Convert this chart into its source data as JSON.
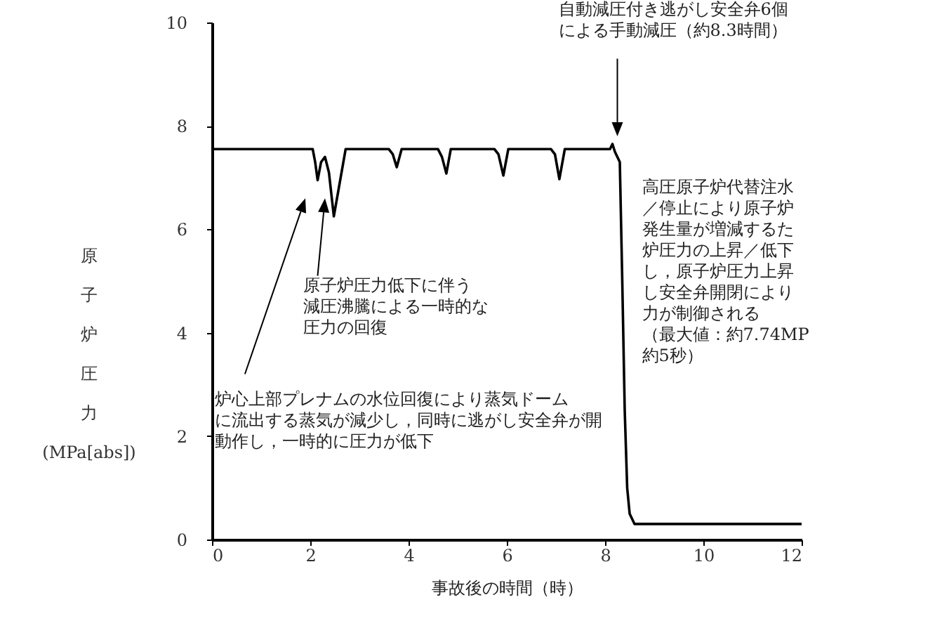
{
  "chart_data": {
    "type": "line",
    "xlabel": "事故後の時間（時）",
    "ylabel": "原子炉圧力\n(MPa[abs])",
    "x": [
      0,
      2.05,
      2.1,
      2.15,
      2.22,
      2.3,
      2.38,
      2.48,
      2.6,
      2.72,
      3.6,
      3.68,
      3.76,
      3.86,
      4.6,
      4.68,
      4.77,
      4.86,
      5.75,
      5.83,
      5.93,
      6.03,
      6.9,
      6.98,
      7.07,
      7.18,
      8.1,
      8.15,
      8.2,
      8.3,
      8.35,
      8.4,
      8.45,
      8.5,
      8.6,
      12
    ],
    "series": [
      {
        "color": "#000000",
        "values": [
          7.55,
          7.55,
          7.3,
          6.95,
          7.3,
          7.4,
          7.1,
          6.25,
          6.9,
          7.55,
          7.55,
          7.45,
          7.2,
          7.55,
          7.55,
          7.4,
          7.08,
          7.55,
          7.55,
          7.45,
          7.04,
          7.55,
          7.55,
          7.45,
          6.97,
          7.55,
          7.55,
          7.65,
          7.5,
          7.3,
          5,
          2.5,
          1,
          0.5,
          0.3,
          0.3
        ]
      }
    ],
    "xlim": [
      0,
      12
    ],
    "xticks": [
      0,
      2,
      4,
      6,
      8,
      10,
      12
    ],
    "ylim": [
      0,
      10
    ],
    "yticks": [
      0,
      2,
      4,
      6,
      8,
      10
    ],
    "grid": false,
    "marker": "none",
    "line_style": "solid",
    "annotations": [
      "自動減圧付き逃がし安全弁6個による手動減圧（約8.3時間）",
      "原子炉圧力低下に伴う減圧沸騰による一時的な圧力の回復",
      "炉心上部プレナムの水位回復により蒸気ドームに流出する蒸気が減少し，同時に逃がし安全弁が開動作し，一時的に圧力が低下",
      "高圧原子炉代替注水／停止により原子炉発生量が増減するた炉圧力の上昇／低下し，原子炉圧力上昇し安全弁開閉により力が制御される（最大値：約7.74MP約5秒）"
    ]
  }
}
